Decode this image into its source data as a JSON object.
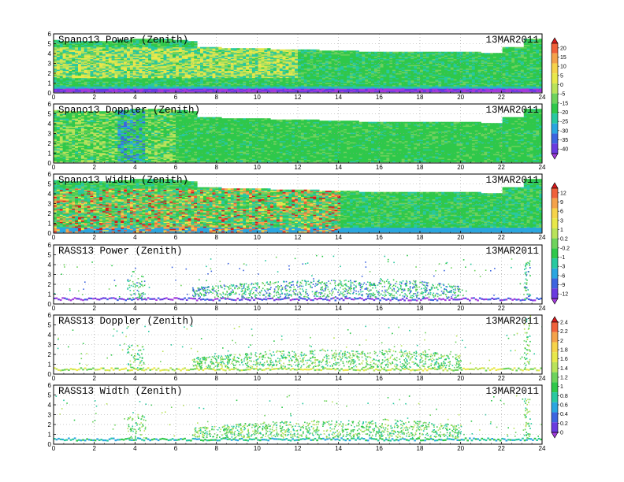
{
  "chart_data": [
    {
      "type": "heatmap",
      "title": "Spano13 Power (Zenith)",
      "date": "13MAR2011",
      "x_range": [
        0,
        24
      ],
      "y_range": [
        0,
        6
      ],
      "x_ticks": [
        "0",
        "2",
        "4",
        "6",
        "8",
        "10",
        "12",
        "14",
        "16",
        "18",
        "20",
        "22",
        "24"
      ],
      "y_ticks": [
        "0",
        "1",
        "2",
        "3",
        "4",
        "5",
        "6"
      ],
      "grid": true
    },
    {
      "type": "heatmap",
      "title": "Spano13 Doppler (Zenith)",
      "date": "13MAR2011",
      "x_range": [
        0,
        24
      ],
      "y_range": [
        0,
        6
      ],
      "x_ticks": [
        "0",
        "2",
        "4",
        "6",
        "8",
        "10",
        "12",
        "14",
        "16",
        "18",
        "20",
        "22",
        "24"
      ],
      "y_ticks": [
        "0",
        "1",
        "2",
        "3",
        "4",
        "5",
        "6"
      ],
      "grid": true
    },
    {
      "type": "heatmap",
      "title": "Spano13 Width (Zenith)",
      "date": "13MAR2011",
      "x_range": [
        0,
        24
      ],
      "y_range": [
        0,
        6
      ],
      "x_ticks": [
        "0",
        "2",
        "4",
        "6",
        "8",
        "10",
        "12",
        "14",
        "16",
        "18",
        "20",
        "22",
        "24"
      ],
      "y_ticks": [
        "0",
        "1",
        "2",
        "3",
        "4",
        "5",
        "6"
      ],
      "grid": true
    },
    {
      "type": "heatmap",
      "title": "RASS13 Power (Zenith)",
      "date": "13MAR2011",
      "x_range": [
        0,
        24
      ],
      "y_range": [
        0,
        6
      ],
      "x_ticks": [
        "0",
        "2",
        "4",
        "6",
        "8",
        "10",
        "12",
        "14",
        "16",
        "18",
        "20",
        "22",
        "24"
      ],
      "y_ticks": [
        "0",
        "1",
        "2",
        "3",
        "4",
        "5",
        "6"
      ],
      "grid": true
    },
    {
      "type": "heatmap",
      "title": "RASS13 Doppler (Zenith)",
      "date": "13MAR2011",
      "x_range": [
        0,
        24
      ],
      "y_range": [
        0,
        6
      ],
      "x_ticks": [
        "0",
        "2",
        "4",
        "6",
        "8",
        "10",
        "12",
        "14",
        "16",
        "18",
        "20",
        "22",
        "24"
      ],
      "y_ticks": [
        "0",
        "1",
        "2",
        "3",
        "4",
        "5",
        "6"
      ],
      "grid": true
    },
    {
      "type": "heatmap",
      "title": "RASS13 Width (Zenith)",
      "date": "13MAR2011",
      "x_range": [
        0,
        24
      ],
      "y_range": [
        0,
        6
      ],
      "x_ticks": [
        "0",
        "2",
        "4",
        "6",
        "8",
        "10",
        "12",
        "14",
        "16",
        "18",
        "20",
        "22",
        "24"
      ],
      "y_ticks": [
        "0",
        "1",
        "2",
        "3",
        "4",
        "5",
        "6"
      ],
      "grid": true
    }
  ],
  "colorbars": [
    {
      "labels": [
        "20",
        "15",
        "10",
        "5",
        "0",
        "-5",
        "-15",
        "-20",
        "-25",
        "-30",
        "-35",
        "-40"
      ],
      "colors": [
        "#d7191c",
        "#f0603a",
        "#f4a24a",
        "#f6d34a",
        "#e8e84a",
        "#b9e35a",
        "#6ed35c",
        "#2fc84a",
        "#27c9a0",
        "#2aa6e0",
        "#3c64e0",
        "#6a3be0",
        "#a33bdc"
      ]
    },
    {
      "labels": [
        "12",
        "9",
        "6",
        "3",
        "1",
        "0.2",
        "-0.2",
        "-1",
        "-3",
        "-6",
        "-9",
        "-12"
      ],
      "colors": [
        "#d7191c",
        "#f0603a",
        "#f4a24a",
        "#f6d34a",
        "#e8e84a",
        "#b9e35a",
        "#6ed35c",
        "#2fc84a",
        "#27c9a0",
        "#2aa6e0",
        "#3c64e0",
        "#6a3be0",
        "#a33bdc"
      ]
    },
    {
      "labels": [
        "2.4",
        "2.2",
        "2",
        "1.8",
        "1.6",
        "1.4",
        "1.2",
        "1",
        "0.8",
        "0.6",
        "0.4",
        "0.2",
        "0"
      ],
      "colors": [
        "#d7191c",
        "#f0603a",
        "#f4a24a",
        "#f6d34a",
        "#e8e84a",
        "#b9e35a",
        "#6ed35c",
        "#2fc84a",
        "#27c9a0",
        "#2aa6e0",
        "#3c64e0",
        "#6a3be0",
        "#a33bdc"
      ]
    }
  ]
}
